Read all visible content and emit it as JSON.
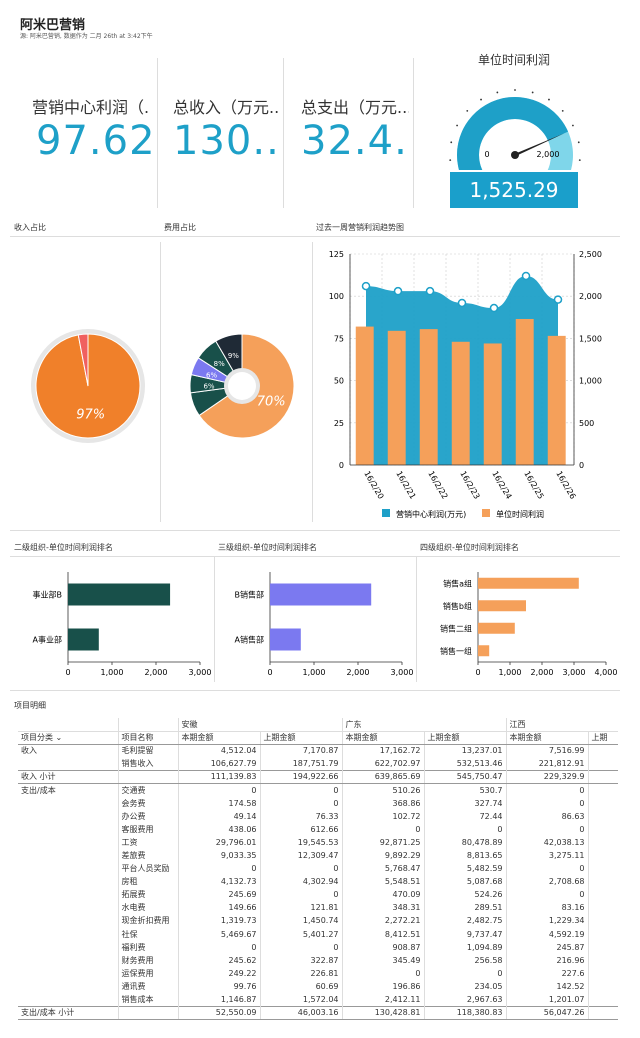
{
  "header": {
    "title": "阿米巴营销",
    "subtitle": "源: 阿米巴营销, 数据作为 二月 26th at 3:42下午"
  },
  "kpis": [
    {
      "label": "营销中心利润（.",
      "value": "97.62"
    },
    {
      "label": "总收入（万元...",
      "value": "130..."
    },
    {
      "label": "总支出（万元...",
      "value": "32.4.."
    }
  ],
  "gauge": {
    "title": "单位时间利润",
    "min_label": "0",
    "max_label": "2,000",
    "value": 1525.29,
    "value_text": "1,525.29",
    "max": 2000,
    "colors": {
      "fill": "#1ea0c8",
      "track": "#7fd6ea",
      "needle": "#222"
    }
  },
  "sections": {
    "income_ratio": "收入占比",
    "expense_ratio": "费用占比",
    "trend": "过去一周营销利润趋势图",
    "rank2": "二级组织-单位时间利润排名",
    "rank3": "三级组织-单位时间利润排名",
    "rank4": "四级组织-单位时间利润排名",
    "detail": "项目明细"
  },
  "colors": {
    "orange": "#f5a05a",
    "dark_orange": "#f0802a",
    "teal_dark": "#18504a",
    "purple": "#7b79f0",
    "blue": "#1ea0c8",
    "navy": "#1f2a36",
    "red": "#f06060",
    "gray": "#e6e6e6"
  },
  "chart_data": [
    {
      "type": "pie",
      "title": "收入占比",
      "slices": [
        {
          "value": 97,
          "label": "97%",
          "color": "#f0802a"
        },
        {
          "value": 3,
          "label": "",
          "color": "#f06060"
        }
      ]
    },
    {
      "type": "pie",
      "title": "费用占比",
      "slices": [
        {
          "value": 70,
          "label": "70%",
          "color": "#f5a05a"
        },
        {
          "value": 8,
          "label": "",
          "color": "#18504a"
        },
        {
          "value": 6,
          "label": "6%",
          "color": "#18504a"
        },
        {
          "value": 6,
          "label": "6%",
          "color": "#7b79f0"
        },
        {
          "value": 8,
          "label": "8%",
          "color": "#18504a"
        },
        {
          "value": 9,
          "label": "9%",
          "color": "#1f2a36"
        }
      ]
    },
    {
      "type": "bar",
      "title": "过去一周营销利润趋势图",
      "categories": [
        "16/2/20",
        "16/2/21",
        "16/2/22",
        "16/2/23",
        "16/2/24",
        "16/2/25",
        "16/2/26"
      ],
      "series": [
        {
          "name": "营销中心利润(万元)",
          "kind": "area",
          "axis": "left",
          "color": "#1ea0c8",
          "values": [
            106,
            103,
            103,
            96,
            93,
            112,
            98
          ]
        },
        {
          "name": "单位时间利润",
          "kind": "bar",
          "axis": "right",
          "color": "#f5a05a",
          "values": [
            1640,
            1590,
            1610,
            1460,
            1440,
            1730,
            1530
          ]
        }
      ],
      "y_left": {
        "ticks": [
          "0",
          "25",
          "50",
          "75",
          "100",
          "125"
        ],
        "lim": [
          0,
          125
        ]
      },
      "y_right": {
        "ticks": [
          "0",
          "500",
          "1,000",
          "1,500",
          "2,000",
          "2,500"
        ],
        "lim": [
          0,
          2500
        ]
      },
      "grid": true,
      "legend": "bottom"
    },
    {
      "type": "bar",
      "orientation": "horizontal",
      "title": "二级组织-单位时间利润排名",
      "categories": [
        "事业部B",
        "A事业部"
      ],
      "values": [
        2320,
        700
      ],
      "xlim": [
        0,
        3000
      ],
      "ticks": [
        "0",
        "1,000",
        "2,000",
        "3,000"
      ],
      "color": "#18504a"
    },
    {
      "type": "bar",
      "orientation": "horizontal",
      "title": "三级组织-单位时间利润排名",
      "categories": [
        "B销售部",
        "A销售部"
      ],
      "values": [
        2300,
        700
      ],
      "xlim": [
        0,
        3000
      ],
      "ticks": [
        "0",
        "1,000",
        "2,000",
        "3,000"
      ],
      "color": "#7b79f0"
    },
    {
      "type": "bar",
      "orientation": "horizontal",
      "title": "四级组织-单位时间利润排名",
      "categories": [
        "销售a组",
        "销售b组",
        "销售二组",
        "销售一组"
      ],
      "values": [
        3150,
        1500,
        1150,
        350
      ],
      "xlim": [
        0,
        4000
      ],
      "ticks": [
        "0",
        "1,000",
        "2,000",
        "3,000",
        "4,000"
      ],
      "color": "#f5a05a"
    }
  ],
  "table": {
    "col_category": "项目分类",
    "col_item": "项目名称",
    "regions": [
      "安徽",
      "广东",
      "江西"
    ],
    "sub_current": "本期金额",
    "sub_last": "上期金额",
    "sub_last_short": "上期",
    "rows": [
      {
        "cat": "收入",
        "item": "毛利提留",
        "v": [
          "4,512.04",
          "7,170.87",
          "17,162.72",
          "13,237.01",
          "7,516.99"
        ]
      },
      {
        "cat": "",
        "item": "销售收入",
        "v": [
          "106,627.79",
          "187,751.79",
          "622,702.97",
          "532,513.46",
          "221,812.91"
        ]
      },
      {
        "cat": "收入 小计",
        "item": "",
        "v": [
          "111,139.83",
          "194,922.66",
          "639,865.69",
          "545,750.47",
          "229,329.9"
        ],
        "subtotal": true
      },
      {
        "cat": "支出/成本",
        "item": "交通费",
        "v": [
          "0",
          "0",
          "510.26",
          "530.7",
          "0"
        ]
      },
      {
        "cat": "",
        "item": "会务费",
        "v": [
          "174.58",
          "0",
          "368.86",
          "327.74",
          "0"
        ]
      },
      {
        "cat": "",
        "item": "办公费",
        "v": [
          "49.14",
          "76.33",
          "102.72",
          "72.44",
          "86.63"
        ]
      },
      {
        "cat": "",
        "item": "客服费用",
        "v": [
          "438.06",
          "612.66",
          "0",
          "0",
          "0"
        ]
      },
      {
        "cat": "",
        "item": "工资",
        "v": [
          "29,796.01",
          "19,545.53",
          "92,871.25",
          "80,478.89",
          "42,038.13"
        ]
      },
      {
        "cat": "",
        "item": "差旅费",
        "v": [
          "9,033.35",
          "12,309.47",
          "9,892.29",
          "8,813.65",
          "3,275.11"
        ]
      },
      {
        "cat": "",
        "item": "平台人员奖励",
        "v": [
          "0",
          "0",
          "5,768.47",
          "5,482.59",
          "0"
        ]
      },
      {
        "cat": "",
        "item": "房租",
        "v": [
          "4,132.73",
          "4,302.94",
          "5,548.51",
          "5,087.68",
          "2,708.68"
        ]
      },
      {
        "cat": "",
        "item": "拓展费",
        "v": [
          "245.69",
          "0",
          "470.09",
          "524.26",
          "0"
        ]
      },
      {
        "cat": "",
        "item": "水电费",
        "v": [
          "149.66",
          "121.81",
          "348.31",
          "289.51",
          "83.16"
        ]
      },
      {
        "cat": "",
        "item": "现金折扣费用",
        "v": [
          "1,319.73",
          "1,450.74",
          "2,272.21",
          "2,482.75",
          "1,229.34"
        ]
      },
      {
        "cat": "",
        "item": "社保",
        "v": [
          "5,469.67",
          "5,401.27",
          "8,412.51",
          "9,737.47",
          "4,592.19"
        ]
      },
      {
        "cat": "",
        "item": "福利费",
        "v": [
          "0",
          "0",
          "908.87",
          "1,094.89",
          "245.87"
        ]
      },
      {
        "cat": "",
        "item": "财务费用",
        "v": [
          "245.62",
          "322.87",
          "345.49",
          "256.58",
          "216.96"
        ]
      },
      {
        "cat": "",
        "item": "运保费用",
        "v": [
          "249.22",
          "226.81",
          "0",
          "0",
          "227.6"
        ]
      },
      {
        "cat": "",
        "item": "通讯费",
        "v": [
          "99.76",
          "60.69",
          "196.86",
          "234.05",
          "142.52"
        ]
      },
      {
        "cat": "",
        "item": "销售成本",
        "v": [
          "1,146.87",
          "1,572.04",
          "2,412.11",
          "2,967.63",
          "1,201.07"
        ]
      },
      {
        "cat": "支出/成本 小计",
        "item": "",
        "v": [
          "52,550.09",
          "46,003.16",
          "130,428.81",
          "118,380.83",
          "56,047.26"
        ],
        "subtotal": true
      }
    ]
  }
}
